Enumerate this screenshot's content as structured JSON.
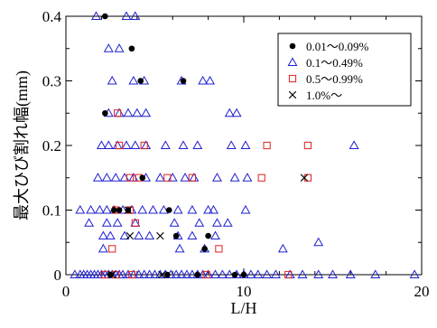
{
  "chart_data": {
    "type": "scatter",
    "xlabel": "L/H",
    "ylabel": "最大ひび割れ幅(mm)",
    "xlim": [
      0,
      20
    ],
    "ylim": [
      0,
      0.4
    ],
    "x_ticks": [
      "0",
      "10",
      "20"
    ],
    "y_ticks": [
      "0",
      "0.1",
      "0.2",
      "0.3",
      "0.4"
    ],
    "legend_position": "top-right",
    "series": [
      {
        "name": "0.01～0.09%",
        "marker": "filled-circle",
        "color": "#000000",
        "points": [
          [
            2.2,
            0.4
          ],
          [
            2.2,
            0.25
          ],
          [
            3.7,
            0.35
          ],
          [
            4.2,
            0.3
          ],
          [
            6.6,
            0.3
          ],
          [
            2.7,
            0.1
          ],
          [
            3.0,
            0.1
          ],
          [
            3.5,
            0.1
          ],
          [
            4.3,
            0.15
          ],
          [
            5.8,
            0.1
          ],
          [
            6.2,
            0.06
          ],
          [
            7.8,
            0.04
          ],
          [
            8.0,
            0.06
          ],
          [
            9.5,
            0.0
          ],
          [
            10.0,
            0.0
          ],
          [
            5.7,
            0.0
          ],
          [
            7.4,
            0.0
          ],
          [
            2.5,
            0.0
          ]
        ]
      },
      {
        "name": "0.1～0.49%",
        "marker": "open-triangle",
        "color": "#1f1fd0",
        "points": [
          [
            1.7,
            0.4
          ],
          [
            3.4,
            0.4
          ],
          [
            3.9,
            0.4
          ],
          [
            2.4,
            0.35
          ],
          [
            3.0,
            0.35
          ],
          [
            2.6,
            0.3
          ],
          [
            3.8,
            0.3
          ],
          [
            4.4,
            0.3
          ],
          [
            6.5,
            0.3
          ],
          [
            7.7,
            0.3
          ],
          [
            8.1,
            0.3
          ],
          [
            2.4,
            0.25
          ],
          [
            3.0,
            0.25
          ],
          [
            3.5,
            0.25
          ],
          [
            4.0,
            0.25
          ],
          [
            4.5,
            0.25
          ],
          [
            9.2,
            0.25
          ],
          [
            9.6,
            0.25
          ],
          [
            2.0,
            0.2
          ],
          [
            2.4,
            0.2
          ],
          [
            2.9,
            0.2
          ],
          [
            3.4,
            0.2
          ],
          [
            3.9,
            0.2
          ],
          [
            4.5,
            0.2
          ],
          [
            5.6,
            0.2
          ],
          [
            6.6,
            0.2
          ],
          [
            7.4,
            0.2
          ],
          [
            9.3,
            0.2
          ],
          [
            10.1,
            0.2
          ],
          [
            16.2,
            0.2
          ],
          [
            1.8,
            0.15
          ],
          [
            2.3,
            0.15
          ],
          [
            2.8,
            0.15
          ],
          [
            3.3,
            0.15
          ],
          [
            3.8,
            0.15
          ],
          [
            4.5,
            0.15
          ],
          [
            5.3,
            0.15
          ],
          [
            6.0,
            0.15
          ],
          [
            6.7,
            0.15
          ],
          [
            7.2,
            0.15
          ],
          [
            8.5,
            0.15
          ],
          [
            9.5,
            0.15
          ],
          [
            10.2,
            0.15
          ],
          [
            0.8,
            0.1
          ],
          [
            1.4,
            0.1
          ],
          [
            1.9,
            0.1
          ],
          [
            2.3,
            0.1
          ],
          [
            2.7,
            0.1
          ],
          [
            3.2,
            0.1
          ],
          [
            3.7,
            0.1
          ],
          [
            4.3,
            0.1
          ],
          [
            4.9,
            0.1
          ],
          [
            5.5,
            0.1
          ],
          [
            6.3,
            0.1
          ],
          [
            7.1,
            0.1
          ],
          [
            8.0,
            0.1
          ],
          [
            8.3,
            0.1
          ],
          [
            10.1,
            0.1
          ],
          [
            1.3,
            0.08
          ],
          [
            2.3,
            0.08
          ],
          [
            2.9,
            0.08
          ],
          [
            3.9,
            0.08
          ],
          [
            6.1,
            0.08
          ],
          [
            7.5,
            0.08
          ],
          [
            8.5,
            0.08
          ],
          [
            9.1,
            0.08
          ],
          [
            2.1,
            0.06
          ],
          [
            2.5,
            0.06
          ],
          [
            3.3,
            0.06
          ],
          [
            4.1,
            0.06
          ],
          [
            4.7,
            0.06
          ],
          [
            6.3,
            0.06
          ],
          [
            7.1,
            0.06
          ],
          [
            8.4,
            0.06
          ],
          [
            2.1,
            0.04
          ],
          [
            6.4,
            0.04
          ],
          [
            7.8,
            0.04
          ],
          [
            12.2,
            0.04
          ],
          [
            14.2,
            0.05
          ],
          [
            0.5,
            0.0
          ],
          [
            0.8,
            0.0
          ],
          [
            1.0,
            0.0
          ],
          [
            1.2,
            0.0
          ],
          [
            1.4,
            0.0
          ],
          [
            1.6,
            0.0
          ],
          [
            1.8,
            0.0
          ],
          [
            2.0,
            0.0
          ],
          [
            2.2,
            0.0
          ],
          [
            2.4,
            0.0
          ],
          [
            2.6,
            0.0
          ],
          [
            2.8,
            0.0
          ],
          [
            3.0,
            0.0
          ],
          [
            3.2,
            0.0
          ],
          [
            3.5,
            0.0
          ],
          [
            3.8,
            0.0
          ],
          [
            4.1,
            0.0
          ],
          [
            4.4,
            0.0
          ],
          [
            4.7,
            0.0
          ],
          [
            5.0,
            0.0
          ],
          [
            5.3,
            0.0
          ],
          [
            5.6,
            0.0
          ],
          [
            5.9,
            0.0
          ],
          [
            6.2,
            0.0
          ],
          [
            6.5,
            0.0
          ],
          [
            6.8,
            0.0
          ],
          [
            7.1,
            0.0
          ],
          [
            7.4,
            0.0
          ],
          [
            7.7,
            0.0
          ],
          [
            8.0,
            0.0
          ],
          [
            8.4,
            0.0
          ],
          [
            8.8,
            0.0
          ],
          [
            9.2,
            0.0
          ],
          [
            9.6,
            0.0
          ],
          [
            10.0,
            0.0
          ],
          [
            10.4,
            0.0
          ],
          [
            10.8,
            0.0
          ],
          [
            11.3,
            0.0
          ],
          [
            11.8,
            0.0
          ],
          [
            12.6,
            0.0
          ],
          [
            13.3,
            0.0
          ],
          [
            14.2,
            0.0
          ],
          [
            15.0,
            0.0
          ],
          [
            16.0,
            0.0
          ],
          [
            17.4,
            0.0
          ],
          [
            19.6,
            0.0
          ]
        ]
      },
      {
        "name": "0.5～0.99%",
        "marker": "open-square",
        "color": "#e02020",
        "points": [
          [
            2.9,
            0.25
          ],
          [
            3.0,
            0.2
          ],
          [
            4.4,
            0.2
          ],
          [
            11.3,
            0.2
          ],
          [
            13.6,
            0.2
          ],
          [
            3.6,
            0.15
          ],
          [
            4.1,
            0.15
          ],
          [
            5.7,
            0.15
          ],
          [
            7.1,
            0.15
          ],
          [
            11.0,
            0.15
          ],
          [
            13.6,
            0.15
          ],
          [
            2.8,
            0.1
          ],
          [
            3.6,
            0.1
          ],
          [
            3.9,
            0.08
          ],
          [
            2.6,
            0.04
          ],
          [
            8.6,
            0.04
          ],
          [
            2.2,
            0.0
          ],
          [
            2.8,
            0.0
          ],
          [
            3.7,
            0.0
          ],
          [
            7.9,
            0.0
          ],
          [
            12.5,
            0.0
          ]
        ]
      },
      {
        "name": "1.0%～",
        "marker": "x",
        "color": "#000000",
        "points": [
          [
            3.5,
            0.1
          ],
          [
            3.6,
            0.06
          ],
          [
            5.3,
            0.06
          ],
          [
            13.4,
            0.15
          ],
          [
            5.4,
            0.0
          ],
          [
            2.6,
            0.0
          ]
        ]
      }
    ]
  }
}
